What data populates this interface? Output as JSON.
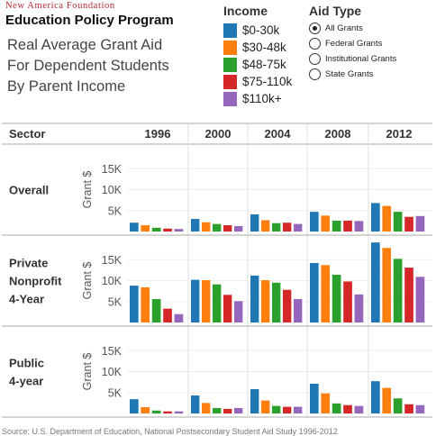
{
  "header": {
    "brand_top": "New America Foundation",
    "brand_main": "Education Policy Program",
    "title_lines": [
      "Real Average Grant Aid",
      "For Dependent Students",
      "By Parent Income"
    ]
  },
  "legend": {
    "title": "Income",
    "items": [
      {
        "label": "$0-30k",
        "color": "#1f77b4"
      },
      {
        "label": "$30-48k",
        "color": "#ff7f0e"
      },
      {
        "label": "$48-75k",
        "color": "#2ca02c"
      },
      {
        "label": "$75-110k",
        "color": "#d62728"
      },
      {
        "label": "$110k+",
        "color": "#9467bd"
      }
    ]
  },
  "filter": {
    "title": "Aid Type",
    "options": [
      "All Grants",
      "Federal Grants",
      "Institutional Grants",
      "State Grants"
    ],
    "selected": "All Grants"
  },
  "table_header": {
    "sector_label": "Sector"
  },
  "chart_data": {
    "type": "bar",
    "ylabel": "Grant $",
    "yticks": [
      "5K",
      "10K",
      "15K"
    ],
    "ylim": [
      0,
      20000
    ],
    "years": [
      "1996",
      "2000",
      "2004",
      "2008",
      "2012"
    ],
    "series_names": [
      "$0-30k",
      "$30-48k",
      "$48-75k",
      "$75-110k",
      "$110k+"
    ],
    "sectors": [
      {
        "name_lines": [
          "Overall"
        ],
        "values": [
          [
            2100,
            1500,
            900,
            700,
            600
          ],
          [
            3000,
            2200,
            1800,
            1500,
            1300
          ],
          [
            4100,
            2700,
            2000,
            2100,
            1800
          ],
          [
            4700,
            3800,
            2600,
            2600,
            2500
          ],
          [
            6800,
            6100,
            4700,
            3500,
            3700
          ]
        ]
      },
      {
        "name_lines": [
          "Private",
          "Nonprofit",
          "4-Year"
        ],
        "values": [
          [
            8800,
            8400,
            5600,
            3300,
            2000
          ],
          [
            10200,
            10100,
            9100,
            6600,
            5100
          ],
          [
            11200,
            10100,
            9500,
            7800,
            5600
          ],
          [
            14200,
            13700,
            11400,
            9800,
            6700
          ],
          [
            19100,
            17800,
            15200,
            13100,
            10900
          ]
        ]
      },
      {
        "name_lines": [
          "Public",
          "4-year"
        ],
        "values": [
          [
            3400,
            1500,
            700,
            500,
            500
          ],
          [
            4300,
            2500,
            1300,
            1100,
            1300
          ],
          [
            5800,
            3100,
            1800,
            1600,
            1600
          ],
          [
            7100,
            4800,
            2400,
            2000,
            1800
          ],
          [
            7700,
            6100,
            3600,
            2200,
            2000
          ]
        ]
      }
    ]
  },
  "source_note": "Source: U.S. Department of Education, National Postsecondary Student Aid Study 1996-2012"
}
